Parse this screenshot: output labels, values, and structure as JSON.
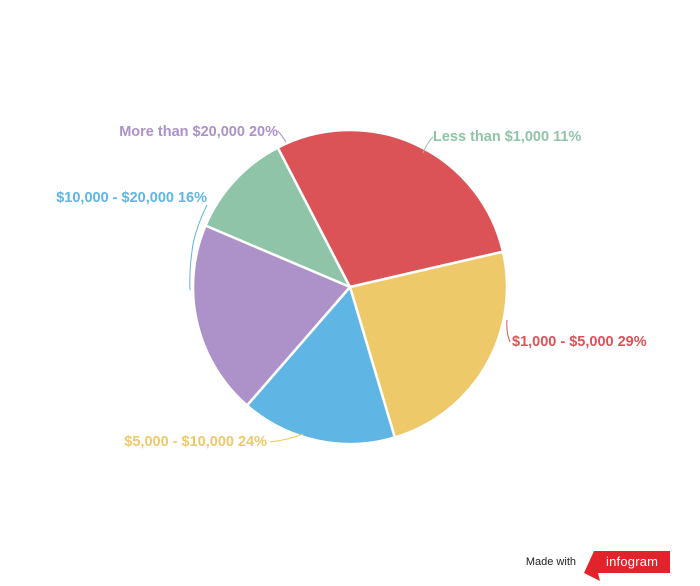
{
  "chart_data": {
    "type": "pie",
    "slices": [
      {
        "label": "Less than $1,000",
        "value": 11,
        "value_text": "11%",
        "color": "#8fc4a8"
      },
      {
        "label": "$1,000 - $5,000",
        "value": 29,
        "value_text": "29%",
        "color": "#dc5357"
      },
      {
        "label": "$5,000 - $10,000",
        "value": 24,
        "value_text": "24%",
        "color": "#eec96a"
      },
      {
        "label": "$10,000 - $20,000",
        "value": 16,
        "value_text": "16%",
        "color": "#5fb6e4"
      },
      {
        "label": "More than $20,000",
        "value": 20,
        "value_text": "20%",
        "color": "#ac92c9"
      }
    ],
    "legend": "none",
    "labels": "outside with leader lines"
  },
  "badge": {
    "made_with": "Made with",
    "brand": "infogram",
    "brand_color": "#e3232b"
  }
}
